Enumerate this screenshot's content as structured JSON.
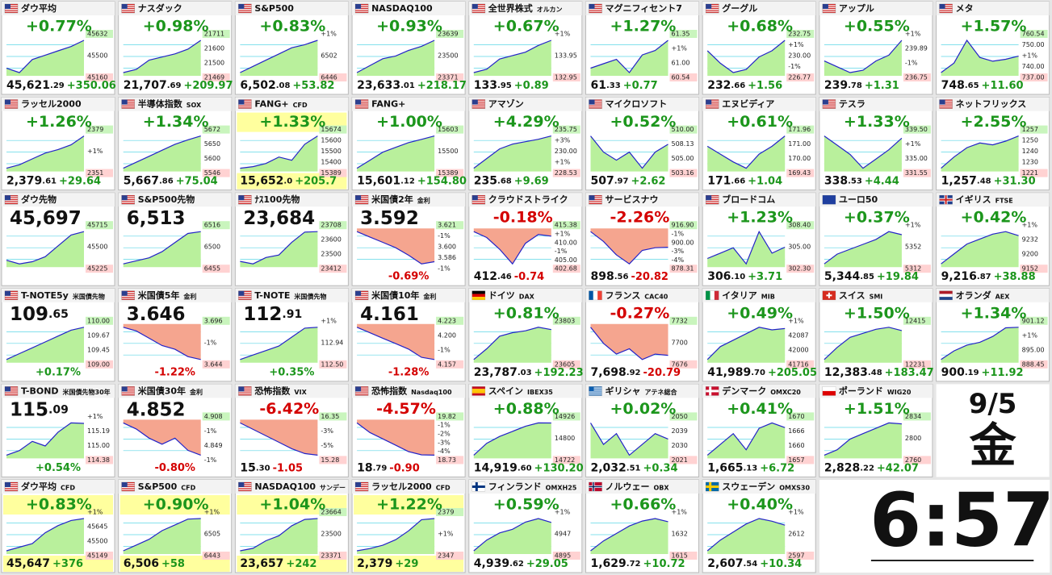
{
  "tiles": [
    {
      "name": "ダウ平均",
      "flag": "us",
      "pct": "+0.77%",
      "price": "45,621",
      "dec": ".29",
      "change": "+350.06",
      "labels": [
        "45632",
        "45500",
        "45160"
      ],
      "spark": [
        45300,
        45250,
        45400,
        45450,
        45500,
        45550,
        45621
      ]
    },
    {
      "name": "ナスダック",
      "flag": "us",
      "pct": "+0.98%",
      "price": "21,707",
      "dec": ".69",
      "change": "+209.97",
      "labels": [
        "21711",
        "21600",
        "21500",
        "21469"
      ],
      "spark": [
        21500,
        21520,
        21580,
        21600,
        21620,
        21650,
        21707
      ]
    },
    {
      "name": "S&P500",
      "flag": "us",
      "pct": "+0.83%",
      "price": "6,502",
      "dec": ".08",
      "change": "+53.82",
      "labels": [
        "+1%",
        "6502",
        "6446"
      ],
      "spark": [
        6450,
        6460,
        6470,
        6480,
        6490,
        6495,
        6502
      ]
    },
    {
      "name": "NASDAQ100",
      "flag": "us",
      "pct": "+0.93%",
      "price": "23,633",
      "dec": ".01",
      "change": "+218.17",
      "labels": [
        "23639",
        "23500",
        "23371"
      ],
      "spark": [
        23400,
        23450,
        23500,
        23520,
        23560,
        23590,
        23633
      ]
    },
    {
      "name": "全世界株式",
      "sub": "オルカン",
      "flag": "us",
      "pct": "+0.67%",
      "price": "133",
      "dec": ".95",
      "change": "+0.89",
      "labels": [
        "+1%",
        "133.95",
        "132.95"
      ],
      "spark": [
        133.0,
        133.1,
        133.4,
        133.5,
        133.6,
        133.8,
        133.95
      ]
    },
    {
      "name": "マグニフィセント7",
      "flag": "us",
      "pct": "+1.27%",
      "price": "61",
      "dec": ".33",
      "change": "+0.77",
      "labels": [
        "61.35",
        "+1%",
        "61.00",
        "60.54"
      ],
      "spark": [
        60.7,
        60.8,
        60.9,
        60.6,
        61.0,
        61.1,
        61.33
      ]
    },
    {
      "name": "グーグル",
      "flag": "us",
      "pct": "+0.68%",
      "price": "232",
      "dec": ".66",
      "change": "+1.56",
      "labels": [
        "232.75",
        "+1%",
        "230.00",
        "-1%",
        "226.77"
      ],
      "spark": [
        231,
        229,
        227.5,
        228,
        230,
        231,
        232.66
      ]
    },
    {
      "name": "アップル",
      "flag": "us",
      "pct": "+0.55%",
      "price": "239",
      "dec": ".78",
      "change": "+1.31",
      "labels": [
        "+1%",
        "239.89",
        "-1%",
        "236.75"
      ],
      "spark": [
        238,
        237.5,
        237,
        237.2,
        238,
        238.5,
        239.78
      ]
    },
    {
      "name": "メタ",
      "flag": "us",
      "pct": "+1.57%",
      "price": "748",
      "dec": ".65",
      "change": "+11.60",
      "labels": [
        "760.54",
        "750.00",
        "+1%",
        "740.00",
        "737.00"
      ],
      "spark": [
        740,
        745,
        757,
        748,
        746,
        747,
        748.65
      ]
    },
    {
      "name": "ラッセル2000",
      "flag": "us",
      "pct": "+1.26%",
      "price": "2,379",
      "dec": ".61",
      "change": "+29.64",
      "labels": [
        "2379",
        "+1%",
        "2351"
      ],
      "spark": [
        2352,
        2355,
        2360,
        2365,
        2368,
        2372,
        2379.61
      ]
    },
    {
      "name": "半導体指数",
      "sub": "SOX",
      "flag": "us",
      "pct": "+1.34%",
      "price": "5,667",
      "dec": ".86",
      "change": "+75.04",
      "labels": [
        "5672",
        "5650",
        "5600",
        "5546"
      ],
      "spark": [
        5560,
        5580,
        5600,
        5620,
        5640,
        5655,
        5667.86
      ]
    },
    {
      "name": "FANG+",
      "sub": "CFD",
      "flag": "us",
      "highlight": true,
      "pct": "+1.33%",
      "price": "15,652",
      "dec": ".0",
      "change": "+205.7",
      "labels": [
        "15674",
        "15600",
        "15500",
        "15400",
        "15389"
      ],
      "spark": [
        15450,
        15460,
        15480,
        15520,
        15500,
        15600,
        15652
      ]
    },
    {
      "name": "FANG+",
      "flag": "us",
      "pct": "+1.00%",
      "price": "15,601",
      "dec": ".12",
      "change": "+154.80",
      "labels": [
        "15603",
        "15500",
        "15389"
      ],
      "spark": [
        15400,
        15450,
        15500,
        15530,
        15560,
        15580,
        15601.12
      ]
    },
    {
      "name": "アマゾン",
      "flag": "us",
      "pct": "+4.29%",
      "price": "235",
      "dec": ".68",
      "change": "+9.69",
      "labels": [
        "235.75",
        "+3%",
        "230.00",
        "+1%",
        "228.53"
      ],
      "spark": [
        229,
        231,
        233,
        234,
        234.5,
        235,
        235.68
      ]
    },
    {
      "name": "マイクロソフト",
      "flag": "us",
      "pct": "+0.52%",
      "price": "507",
      "dec": ".97",
      "change": "+2.62",
      "labels": [
        "510.00",
        "508.13",
        "505.00",
        "503.16"
      ],
      "spark": [
        509,
        507,
        506,
        507,
        505,
        507,
        507.97
      ]
    },
    {
      "name": "エヌビディア",
      "flag": "us",
      "pct": "+0.61%",
      "price": "171",
      "dec": ".66",
      "change": "+1.04",
      "labels": [
        "171.96",
        "171.00",
        "170.00",
        "169.43"
      ],
      "spark": [
        171,
        170.5,
        170,
        169.6,
        170.5,
        171,
        171.66
      ]
    },
    {
      "name": "テスラ",
      "flag": "us",
      "pct": "+1.33%",
      "price": "338",
      "dec": ".53",
      "change": "+4.44",
      "labels": [
        "339.50",
        "+1%",
        "335.00",
        "331.55"
      ],
      "spark": [
        339,
        337,
        335,
        332,
        334,
        336,
        338.53
      ]
    },
    {
      "name": "ネットフリックス",
      "flag": "us",
      "pct": "+2.55%",
      "price": "1,257",
      "dec": ".48",
      "change": "+31.30",
      "labels": [
        "1257",
        "1250",
        "1240",
        "1230",
        "1221"
      ],
      "spark": [
        1223,
        1235,
        1245,
        1250,
        1248,
        1252,
        1257.48
      ]
    },
    {
      "name": "ダウ先物",
      "flag": "us",
      "price": "45,697",
      "labels": [
        "45715",
        "45500",
        "45225"
      ],
      "spark": [
        45300,
        45250,
        45280,
        45350,
        45500,
        45650,
        45697
      ]
    },
    {
      "name": "S&P500先物",
      "flag": "us",
      "price": "6,513",
      "labels": [
        "6516",
        "6500",
        "6455"
      ],
      "spark": [
        6460,
        6465,
        6470,
        6480,
        6495,
        6510,
        6513
      ]
    },
    {
      "name": "ﾅｽ100先物",
      "flag": "us",
      "price": "23,684",
      "labels": [
        "23708",
        "23600",
        "23500",
        "23412"
      ],
      "spark": [
        23450,
        23430,
        23480,
        23500,
        23600,
        23680,
        23684
      ]
    },
    {
      "name": "米国債2年",
      "sub": "金利",
      "flag": "us",
      "price": "3.592",
      "pct": "-0.69%",
      "labels": [
        "3.621",
        "-1%",
        "3.600",
        "3.586",
        "-1%"
      ],
      "spark": [
        3.62,
        3.615,
        3.61,
        3.605,
        3.598,
        3.59,
        3.592
      ]
    },
    {
      "name": "クラウドストライク",
      "flag": "us",
      "pct": "-0.18%",
      "price": "412",
      "dec": ".46",
      "change": "-0.74",
      "labels": [
        "415.38",
        "+1%",
        "410.00",
        "-1%",
        "405.00",
        "402.68"
      ],
      "spark": [
        414,
        412,
        408,
        403,
        410,
        413,
        412.46
      ]
    },
    {
      "name": "サービスナウ",
      "flag": "us",
      "pct": "-2.26%",
      "price": "898",
      "dec": ".56",
      "change": "-20.82",
      "labels": [
        "916.90",
        "-1%",
        "900.00",
        "-3%",
        "-4%",
        "878.31"
      ],
      "spark": [
        916,
        905,
        890,
        880,
        895,
        898,
        898.56
      ]
    },
    {
      "name": "ブロードコム",
      "flag": "us",
      "pct": "+1.23%",
      "price": "306",
      "dec": ".10",
      "change": "+3.71",
      "labels": [
        "308.40",
        "305.00",
        "302.30"
      ],
      "spark": [
        304,
        305,
        306,
        303,
        309,
        305,
        306.1
      ]
    },
    {
      "name": "ユーロ50",
      "flag": "eu",
      "pct": "+0.37%",
      "price": "5,344",
      "dec": ".85",
      "change": "+19.84",
      "labels": [
        "+1%",
        "5352",
        "5312"
      ],
      "spark": [
        5315,
        5325,
        5330,
        5335,
        5340,
        5348,
        5344.85
      ]
    },
    {
      "name": "イギリス",
      "sub": "FTSE",
      "flag": "gb",
      "pct": "+0.42%",
      "price": "9,216",
      "dec": ".87",
      "change": "+38.88",
      "labels": [
        "+1%",
        "9232",
        "9200",
        "9152"
      ],
      "spark": [
        9160,
        9180,
        9200,
        9210,
        9220,
        9225,
        9216.87
      ]
    },
    {
      "name": "T-NOTE5y",
      "sub": "米国債先物",
      "flag": "us",
      "price": "109",
      "dec": ".65",
      "pct": "+0.17%",
      "labels": [
        "110.00",
        "109.67",
        "109.45",
        "109.00"
      ],
      "spark": [
        109.1,
        109.2,
        109.3,
        109.4,
        109.5,
        109.6,
        109.65
      ]
    },
    {
      "name": "米国債5年",
      "sub": "金利",
      "flag": "us",
      "price": "3.646",
      "pct": "-1.22%",
      "labels": [
        "3.696",
        "-1%",
        "3.644"
      ],
      "spark": [
        3.69,
        3.685,
        3.675,
        3.665,
        3.66,
        3.65,
        3.646
      ]
    },
    {
      "name": "T-NOTE",
      "sub": "米国債先物",
      "flag": "us",
      "price": "112",
      "dec": ".91",
      "pct": "+0.35%",
      "labels": [
        "+1%",
        "112.94",
        "112.50"
      ],
      "spark": [
        112.55,
        112.6,
        112.65,
        112.7,
        112.8,
        112.9,
        112.91
      ]
    },
    {
      "name": "米国債10年",
      "sub": "金利",
      "flag": "us",
      "price": "4.161",
      "pct": "-1.28%",
      "labels": [
        "4.223",
        "4.200",
        "-1%",
        "4.157"
      ],
      "spark": [
        4.22,
        4.21,
        4.2,
        4.19,
        4.18,
        4.165,
        4.161
      ]
    },
    {
      "name": "ドイツ",
      "sub": "DAX",
      "flag": "de",
      "pct": "+0.81%",
      "price": "23,787",
      "dec": ".03",
      "change": "+192.23",
      "labels": [
        "23803",
        "23605"
      ],
      "spark": [
        23620,
        23680,
        23750,
        23770,
        23780,
        23800,
        23787.03
      ]
    },
    {
      "name": "フランス",
      "sub": "CAC40",
      "flag": "fr",
      "pct": "-0.27%",
      "price": "7,698",
      "dec": ".92",
      "change": "-20.79",
      "labels": [
        "7732",
        "7700",
        "7676"
      ],
      "spark": [
        7725,
        7710,
        7700,
        7705,
        7695,
        7700,
        7698.92
      ]
    },
    {
      "name": "イタリア",
      "sub": "MIB",
      "flag": "it",
      "pct": "+0.49%",
      "price": "41,989",
      "dec": ".70",
      "change": "+205.05",
      "labels": [
        "+1%",
        "42087",
        "42000",
        "41716"
      ],
      "spark": [
        41750,
        41850,
        41900,
        41950,
        42000,
        41980,
        41989.7
      ]
    },
    {
      "name": "スイス",
      "sub": "SMI",
      "flag": "ch",
      "pct": "+1.50%",
      "price": "12,383",
      "dec": ".48",
      "change": "+183.47",
      "labels": [
        "12415",
        "12231"
      ],
      "spark": [
        12240,
        12300,
        12350,
        12370,
        12390,
        12400,
        12383.48
      ]
    },
    {
      "name": "オランダ",
      "sub": "AEX",
      "flag": "nl",
      "pct": "+1.34%",
      "price": "900",
      "dec": ".19",
      "change": "+11.92",
      "labels": [
        "901.12",
        "+1%",
        "895.00",
        "888.45"
      ],
      "spark": [
        889,
        892,
        894,
        895,
        897,
        900,
        900.19
      ]
    },
    {
      "name": "T-BOND",
      "sub": "米国債先物30年",
      "flag": "us",
      "price": "115",
      "dec": ".09",
      "pct": "+0.54%",
      "labels": [
        "+1%",
        "115.19",
        "115.00",
        "114.38"
      ],
      "spark": [
        114.4,
        114.5,
        114.7,
        114.6,
        114.9,
        115.1,
        115.09
      ]
    },
    {
      "name": "米国債30年",
      "sub": "金利",
      "flag": "us",
      "price": "4.852",
      "pct": "-0.80%",
      "labels": [
        "4.908",
        "-1%",
        "4.849",
        "-1%"
      ],
      "spark": [
        4.905,
        4.895,
        4.88,
        4.87,
        4.88,
        4.86,
        4.852
      ]
    },
    {
      "name": "恐怖指数",
      "sub": "VIX",
      "flag": "us",
      "pct": "-6.42%",
      "price": "15",
      "dec": ".30",
      "change": "-1.05",
      "labels": [
        "16.35",
        "-3%",
        "-5%",
        "15.28"
      ],
      "spark": [
        16.3,
        16.1,
        15.9,
        15.7,
        15.5,
        15.35,
        15.3
      ]
    },
    {
      "name": "恐怖指数",
      "sub": "Nasdaq100",
      "flag": "us",
      "pct": "-4.57%",
      "price": "18",
      "dec": ".79",
      "change": "-0.90",
      "labels": [
        "19.82",
        "-1%",
        "-2%",
        "-3%",
        "-4%",
        "18.73"
      ],
      "spark": [
        19.8,
        19.5,
        19.3,
        19.1,
        18.9,
        18.8,
        18.79
      ]
    },
    {
      "name": "スペイン",
      "sub": "IBEX35",
      "flag": "es",
      "pct": "+0.88%",
      "price": "14,919",
      "dec": ".60",
      "change": "+130.20",
      "labels": [
        "14926",
        "14800",
        "14722"
      ],
      "spark": [
        14730,
        14800,
        14840,
        14870,
        14900,
        14920,
        14919.6
      ]
    },
    {
      "name": "ギリシャ",
      "sub": "アテネ総合",
      "flag": "gr",
      "pct": "+0.02%",
      "price": "2,032",
      "dec": ".51",
      "change": "+0.34",
      "labels": [
        "2050",
        "2039",
        "2030",
        "2021"
      ],
      "spark": [
        2040,
        2030,
        2035,
        2025,
        2030,
        2035,
        2032.51
      ]
    },
    {
      "name": "デンマーク",
      "sub": "OMXC20",
      "flag": "dk",
      "pct": "+0.41%",
      "price": "1,665",
      "dec": ".13",
      "change": "+6.72",
      "labels": [
        "1670",
        "1666",
        "1660",
        "1657"
      ],
      "spark": [
        1660,
        1662,
        1664,
        1661,
        1665,
        1666,
        1665.13
      ]
    },
    {
      "name": "ポーランド",
      "sub": "WIG20",
      "flag": "pl",
      "pct": "+1.51%",
      "price": "2,828",
      "dec": ".22",
      "change": "+42.07",
      "labels": [
        "2834",
        "2800",
        "2760"
      ],
      "spark": [
        2770,
        2780,
        2800,
        2810,
        2820,
        2830,
        2828.22
      ]
    },
    {
      "name": "ダウ平均",
      "sub": "CFD",
      "flag": "us",
      "highlight": true,
      "pct": "+0.83%",
      "price": "45,647",
      "change": "+376",
      "labels": [
        "+1%",
        "45645",
        "45500",
        "45149"
      ],
      "spark": [
        45200,
        45250,
        45300,
        45450,
        45550,
        45620,
        45647
      ]
    },
    {
      "name": "S&P500",
      "sub": "CFD",
      "flag": "us",
      "highlight": true,
      "pct": "+0.90%",
      "price": "6,506",
      "change": "+58",
      "labels": [
        "+1%",
        "6505",
        "6443"
      ],
      "spark": [
        6450,
        6460,
        6470,
        6485,
        6495,
        6505,
        6506
      ]
    },
    {
      "name": "NASDAQ100",
      "sub": "サンデー",
      "flag": "us",
      "highlight": true,
      "pct": "+1.04%",
      "price": "23,657",
      "change": "+242",
      "labels": [
        "23664",
        "23500",
        "23371"
      ],
      "spark": [
        23400,
        23420,
        23480,
        23520,
        23600,
        23650,
        23657
      ]
    },
    {
      "name": "ラッセル2000",
      "sub": "CFD",
      "flag": "us",
      "highlight": true,
      "pct": "+1.22%",
      "price": "2,379",
      "change": "+29",
      "labels": [
        "2379",
        "+1%",
        "2347"
      ],
      "spark": [
        2350,
        2352,
        2355,
        2360,
        2368,
        2378,
        2379
      ]
    },
    {
      "name": "フィンランド",
      "sub": "OMXH25",
      "flag": "fi",
      "pct": "+0.59%",
      "price": "4,939",
      "dec": ".62",
      "change": "+29.05",
      "labels": [
        "+1%",
        "4947",
        "4895"
      ],
      "spark": [
        4900,
        4915,
        4925,
        4930,
        4940,
        4945,
        4939.62
      ]
    },
    {
      "name": "ノルウェー",
      "sub": "OBX",
      "flag": "no",
      "pct": "+0.66%",
      "price": "1,629",
      "dec": ".72",
      "change": "+10.72",
      "labels": [
        "+1%",
        "1632",
        "1615"
      ],
      "spark": [
        1618,
        1622,
        1625,
        1628,
        1630,
        1631,
        1629.72
      ]
    },
    {
      "name": "スウェーデン",
      "sub": "OMXS30",
      "flag": "se",
      "pct": "+0.40%",
      "price": "2,607",
      "dec": ".54",
      "change": "+10.34",
      "labels": [
        "+1%",
        "2612",
        "2597"
      ],
      "spark": [
        2598,
        2602,
        2605,
        2608,
        2610,
        2609,
        2607.54
      ]
    }
  ],
  "date": "9/5",
  "weekday": "金",
  "time": "6:57"
}
